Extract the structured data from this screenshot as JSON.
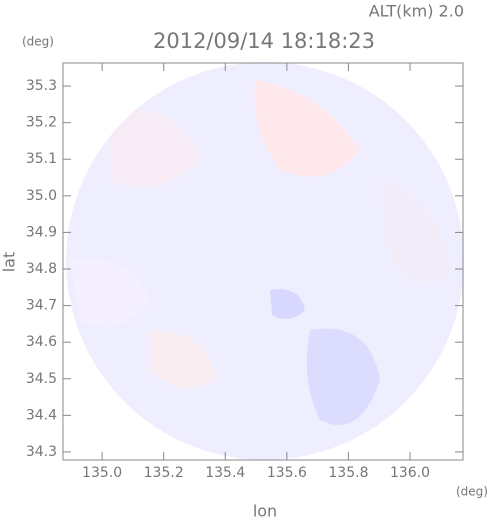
{
  "chart_data": {
    "type": "radar-map",
    "title": "2012/09/14 18:18:23",
    "annotation": "ALT(km) 2.0",
    "x_label": "lon",
    "y_label": "lat",
    "x_unit": "(deg)",
    "y_unit": "(deg)",
    "xlim": [
      134.873,
      136.172
    ],
    "ylim": [
      34.278,
      35.363
    ],
    "xticks": [
      {
        "value": 135.0,
        "label": "135.0"
      },
      135.2,
      135.4,
      135.6,
      135.8,
      {
        "value": 136.0,
        "label": "136.0"
      }
    ],
    "yticks": [
      34.3,
      34.4,
      34.5,
      34.6,
      34.7,
      34.8,
      34.9,
      {
        "value": 35.0,
        "label": "35.0"
      },
      35.1,
      35.2,
      35.3
    ]
  }
}
